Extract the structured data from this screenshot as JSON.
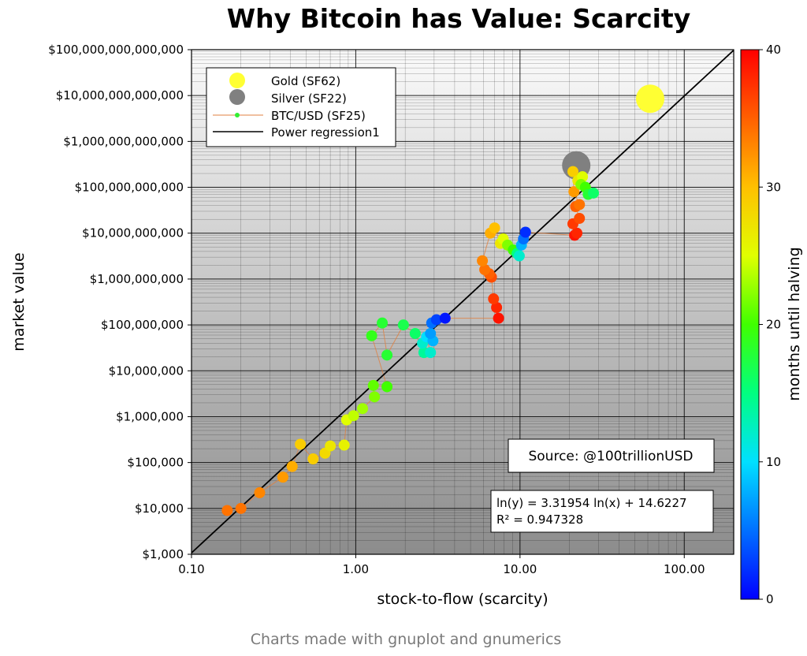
{
  "chart_data": {
    "type": "scatter",
    "title": "Why Bitcoin has Value: Scarcity",
    "xlabel": "stock-to-flow (scarcity)",
    "ylabel": "market value",
    "x_scale": "log",
    "y_scale": "log",
    "xlim": [
      0.1,
      200
    ],
    "ylim": [
      1000,
      100000000000000
    ],
    "x_ticks": [
      {
        "value": 0.1,
        "label": "0.10"
      },
      {
        "value": 1,
        "label": "1.00"
      },
      {
        "value": 10,
        "label": "10.00"
      },
      {
        "value": 100,
        "label": "100.00"
      }
    ],
    "y_ticks": [
      {
        "value": 1000,
        "label": "$1,000"
      },
      {
        "value": 10000,
        "label": "$10,000"
      },
      {
        "value": 100000,
        "label": "$100,000"
      },
      {
        "value": 1000000,
        "label": "$1,000,000"
      },
      {
        "value": 10000000,
        "label": "$10,000,000"
      },
      {
        "value": 100000000,
        "label": "$100,000,000"
      },
      {
        "value": 1000000000,
        "label": "$1,000,000,000"
      },
      {
        "value": 10000000000,
        "label": "$10,000,000,000"
      },
      {
        "value": 100000000000,
        "label": "$100,000,000,000"
      },
      {
        "value": 1000000000000,
        "label": "$1,000,000,000,000"
      },
      {
        "value": 10000000000000,
        "label": "$10,000,000,000,000"
      },
      {
        "value": 100000000000000,
        "label": "$100,000,000,000,000"
      }
    ],
    "grid": true,
    "legend_position": "top-left",
    "legend": [
      {
        "label": "Gold (SF62)",
        "kind": "dot-large",
        "color": "#ffff33"
      },
      {
        "label": "Silver (SF22)",
        "kind": "dot-large",
        "color": "#808080"
      },
      {
        "label": "BTC/USD (SF25)",
        "kind": "line-dot",
        "color": "#e08040",
        "dot_color": "#33ee33"
      },
      {
        "label": "Power regression1",
        "kind": "line",
        "color": "#000000"
      }
    ],
    "colorbar": {
      "label": "months until halving",
      "min": 0,
      "max": 40,
      "ticks": [
        {
          "value": 0,
          "label": "0"
        },
        {
          "value": 10,
          "label": "10"
        },
        {
          "value": 20,
          "label": "20"
        },
        {
          "value": 30,
          "label": "30"
        },
        {
          "value": 40,
          "label": "40"
        }
      ],
      "stops": [
        "#0000ff",
        "#0070ff",
        "#00e0ff",
        "#00ff80",
        "#40ff00",
        "#e0ff00",
        "#ffc000",
        "#ff6000",
        "#ff0000"
      ]
    },
    "regression": {
      "a": 3.31954,
      "b": 14.6227,
      "color": "#000000"
    },
    "equation_lines": [
      "ln(y) = 3.31954 ln(x) + 14.6227",
      "R² = 0.947328"
    ],
    "source_text": "Source: @100trillionUSD",
    "series": [
      {
        "name": "Gold (SF62)",
        "color": "#ffff33",
        "points": [
          {
            "x": 62,
            "y": 8500000000000
          }
        ]
      },
      {
        "name": "Silver (SF22)",
        "color": "#808080",
        "points": [
          {
            "x": 22,
            "y": 300000000000
          }
        ]
      },
      {
        "name": "BTC/USD (SF25)",
        "line_color": "#e08040",
        "points": [
          {
            "x": 0.165,
            "y": 9000,
            "m": 34
          },
          {
            "x": 0.2,
            "y": 10000,
            "m": 34
          },
          {
            "x": 0.26,
            "y": 22000,
            "m": 33
          },
          {
            "x": 0.36,
            "y": 48000,
            "m": 32
          },
          {
            "x": 0.41,
            "y": 82000,
            "m": 31
          },
          {
            "x": 0.46,
            "y": 250000,
            "m": 29
          },
          {
            "x": 0.55,
            "y": 120000,
            "m": 29
          },
          {
            "x": 0.65,
            "y": 160000,
            "m": 28
          },
          {
            "x": 0.7,
            "y": 230000,
            "m": 27
          },
          {
            "x": 0.85,
            "y": 240000,
            "m": 26
          },
          {
            "x": 0.88,
            "y": 850000,
            "m": 25
          },
          {
            "x": 0.97,
            "y": 1050000,
            "m": 24
          },
          {
            "x": 1.1,
            "y": 1500000,
            "m": 23
          },
          {
            "x": 1.3,
            "y": 2700000,
            "m": 22
          },
          {
            "x": 1.28,
            "y": 4800000,
            "m": 21
          },
          {
            "x": 1.55,
            "y": 4500000,
            "m": 20
          },
          {
            "x": 1.25,
            "y": 58000000,
            "m": 19
          },
          {
            "x": 1.45,
            "y": 110000000,
            "m": 18
          },
          {
            "x": 1.55,
            "y": 22000000,
            "m": 18
          },
          {
            "x": 1.95,
            "y": 100000000,
            "m": 17
          },
          {
            "x": 2.3,
            "y": 65000000,
            "m": 16
          },
          {
            "x": 2.6,
            "y": 25000000,
            "m": 14
          },
          {
            "x": 2.55,
            "y": 40000000,
            "m": 12
          },
          {
            "x": 2.85,
            "y": 25000000,
            "m": 12
          },
          {
            "x": 2.7,
            "y": 55000000,
            "m": 10
          },
          {
            "x": 2.95,
            "y": 45000000,
            "m": 8
          },
          {
            "x": 2.85,
            "y": 65000000,
            "m": 7
          },
          {
            "x": 2.9,
            "y": 110000000,
            "m": 5
          },
          {
            "x": 3.1,
            "y": 130000000,
            "m": 3
          },
          {
            "x": 3.5,
            "y": 140000000,
            "m": 1
          },
          {
            "x": 7.4,
            "y": 140000000,
            "m": 39
          },
          {
            "x": 7.2,
            "y": 240000000,
            "m": 38
          },
          {
            "x": 6.9,
            "y": 370000000,
            "m": 37
          },
          {
            "x": 6.7,
            "y": 1100000000,
            "m": 36
          },
          {
            "x": 6.5,
            "y": 1300000000,
            "m": 35
          },
          {
            "x": 6.1,
            "y": 1600000000,
            "m": 34
          },
          {
            "x": 5.9,
            "y": 2500000000,
            "m": 33
          },
          {
            "x": 6.6,
            "y": 10000000000,
            "m": 31
          },
          {
            "x": 7.0,
            "y": 13000000000,
            "m": 30
          },
          {
            "x": 7.6,
            "y": 6000000000,
            "m": 27
          },
          {
            "x": 7.9,
            "y": 7500000000,
            "m": 25
          },
          {
            "x": 8.4,
            "y": 5500000000,
            "m": 22
          },
          {
            "x": 9.1,
            "y": 4300000000,
            "m": 20
          },
          {
            "x": 9.6,
            "y": 3600000000,
            "m": 15
          },
          {
            "x": 9.9,
            "y": 3200000000,
            "m": 12
          },
          {
            "x": 10.2,
            "y": 5500000000,
            "m": 8
          },
          {
            "x": 10.5,
            "y": 7500000000,
            "m": 5
          },
          {
            "x": 10.8,
            "y": 10500000000,
            "m": 2
          },
          {
            "x": 21.5,
            "y": 9000000000,
            "m": 39
          },
          {
            "x": 22.2,
            "y": 10000000000,
            "m": 38
          },
          {
            "x": 21.0,
            "y": 16000000000,
            "m": 37
          },
          {
            "x": 23.0,
            "y": 21000000000,
            "m": 36
          },
          {
            "x": 21.8,
            "y": 38000000000,
            "m": 35
          },
          {
            "x": 23.0,
            "y": 42000000000,
            "m": 34
          },
          {
            "x": 21.3,
            "y": 80000000000,
            "m": 32
          },
          {
            "x": 21.0,
            "y": 220000000000,
            "m": 29
          },
          {
            "x": 22.5,
            "y": 140000000000,
            "m": 27
          },
          {
            "x": 24.0,
            "y": 170000000000,
            "m": 25
          },
          {
            "x": 23.5,
            "y": 115000000000,
            "m": 22
          },
          {
            "x": 25.0,
            "y": 100000000000,
            "m": 20
          },
          {
            "x": 26.0,
            "y": 70000000000,
            "m": 18
          },
          {
            "x": 28.0,
            "y": 75000000000,
            "m": 16
          }
        ]
      }
    ]
  },
  "caption": "Charts made with gnuplot and gnumerics"
}
